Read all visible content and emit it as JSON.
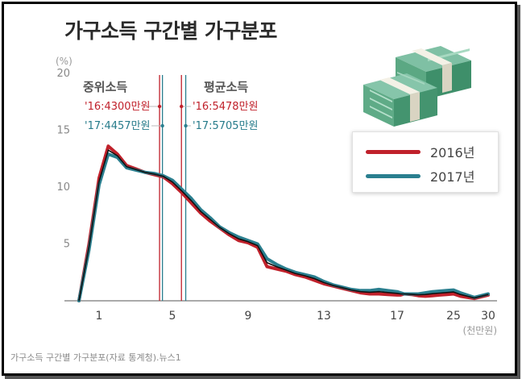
{
  "title": "가구소득 구간별 가구분포",
  "credit": "가구소득 구간별 가구분포(자료 통계청).뉴스1",
  "colors": {
    "s2016": "#c0212b",
    "s2017": "#2a7f8f",
    "all": "#111111",
    "axis": "#777777"
  },
  "annotations": {
    "median": {
      "label": "중위소득",
      "y2016": "'16:4300만원",
      "y2017": "'17:4457만원",
      "x2016": 4.3,
      "x2017": 4.457
    },
    "mean": {
      "label": "평균소득",
      "y2016": "'16:5478만원",
      "y2017": "'17:5705만원",
      "x2016": 5.478,
      "x2017": 5.705
    }
  },
  "chart_data": {
    "type": "line",
    "title": "가구소득 구간별 가구분포",
    "xunit": "(천만원)",
    "yunit": "(%)",
    "xticks": [
      "1",
      "5",
      "9",
      "13",
      "17",
      "25",
      "30"
    ],
    "yticks": [
      "5",
      "10",
      "15",
      "20"
    ],
    "ylim": [
      0,
      20
    ],
    "grid": false,
    "legend": "right",
    "series": [
      {
        "name": "2016년",
        "x": [
          0,
          0.5,
          1,
          1.5,
          2,
          2.5,
          3,
          3.5,
          4,
          4.5,
          5,
          5.5,
          6,
          6.5,
          7,
          7.5,
          8,
          8.5,
          9,
          9.5,
          10,
          10.5,
          11,
          11.5,
          12,
          12.5,
          13,
          13.5,
          14,
          14.5,
          15,
          15.5,
          16,
          16.5,
          17,
          17.5,
          18,
          19,
          20,
          21,
          22,
          23,
          24,
          25,
          26,
          28,
          30
        ],
        "values": [
          0,
          5,
          10.8,
          13.6,
          12.9,
          11.9,
          11.6,
          11.3,
          11.1,
          10.9,
          10.3,
          9.5,
          8.6,
          7.7,
          7.0,
          6.4,
          5.8,
          5.3,
          5.1,
          4.7,
          3.0,
          2.8,
          2.6,
          2.3,
          2.1,
          1.8,
          1.5,
          1.3,
          1.1,
          0.9,
          0.7,
          0.6,
          0.6,
          0.55,
          0.5,
          0.5,
          0.6,
          0.55,
          0.45,
          0.4,
          0.45,
          0.5,
          0.55,
          0.6,
          0.4,
          0.2,
          0.5
        ]
      },
      {
        "name": "2017년",
        "x": [
          0,
          0.5,
          1,
          1.5,
          2,
          2.5,
          3,
          3.5,
          4,
          4.5,
          5,
          5.5,
          6,
          6.5,
          7,
          7.5,
          8,
          8.5,
          9,
          9.5,
          10,
          10.5,
          11,
          11.5,
          12,
          12.5,
          13,
          13.5,
          14,
          14.5,
          15,
          15.5,
          16,
          16.5,
          17,
          17.5,
          18,
          19,
          20,
          21,
          22,
          23,
          24,
          25,
          26,
          28,
          30
        ],
        "values": [
          0,
          4.5,
          10.2,
          12.9,
          12.6,
          11.7,
          11.5,
          11.3,
          11.2,
          11.0,
          10.6,
          9.8,
          9.0,
          8.0,
          7.3,
          6.5,
          6.0,
          5.6,
          5.3,
          5.0,
          3.7,
          3.2,
          2.8,
          2.5,
          2.3,
          2.1,
          1.7,
          1.4,
          1.2,
          1.0,
          0.9,
          0.9,
          1.0,
          0.9,
          0.8,
          0.7,
          0.6,
          0.6,
          0.6,
          0.7,
          0.8,
          0.85,
          0.9,
          0.95,
          0.7,
          0.3,
          0.6
        ]
      }
    ]
  }
}
